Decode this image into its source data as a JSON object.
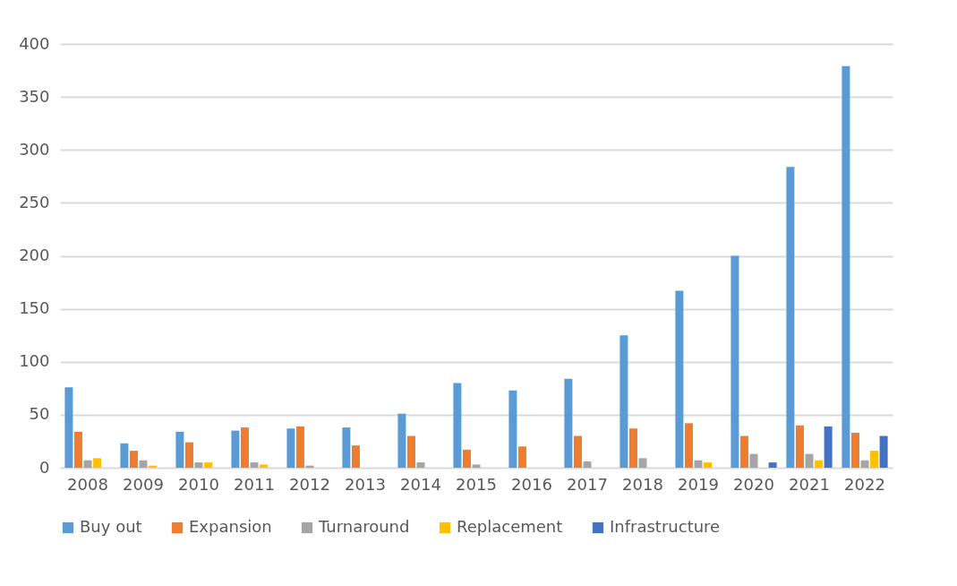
{
  "chart_data": {
    "type": "bar",
    "categories": [
      "2008",
      "2009",
      "2010",
      "2011",
      "2012",
      "2013",
      "2014",
      "2015",
      "2016",
      "2017",
      "2018",
      "2019",
      "2020",
      "2021",
      "2022"
    ],
    "series": [
      {
        "name": "Buy out",
        "color": "#5b9bd5",
        "values": [
          76,
          23,
          34,
          35,
          37,
          38,
          51,
          80,
          73,
          84,
          125,
          167,
          200,
          284,
          379
        ]
      },
      {
        "name": "Expansion",
        "color": "#ed7d31",
        "values": [
          34,
          16,
          24,
          38,
          39,
          21,
          30,
          17,
          20,
          30,
          37,
          42,
          30,
          40,
          33
        ]
      },
      {
        "name": "Turnaround",
        "color": "#a5a5a5",
        "values": [
          7,
          7,
          5,
          5,
          2,
          null,
          5,
          3,
          null,
          6,
          9,
          7,
          13,
          13,
          7
        ]
      },
      {
        "name": "Replacement",
        "color": "#ffc000",
        "values": [
          9,
          2,
          5,
          3,
          null,
          null,
          null,
          null,
          null,
          null,
          null,
          5,
          null,
          7,
          16
        ]
      },
      {
        "name": "Infrastructure",
        "color": "#4472c4",
        "values": [
          null,
          null,
          null,
          null,
          null,
          null,
          null,
          null,
          null,
          null,
          null,
          null,
          5,
          39,
          30
        ]
      }
    ],
    "ylim": [
      0,
      400
    ],
    "yticks": [
      0,
      50,
      100,
      150,
      200,
      250,
      300,
      350,
      400
    ],
    "grid": "y",
    "legend": "bottom"
  }
}
